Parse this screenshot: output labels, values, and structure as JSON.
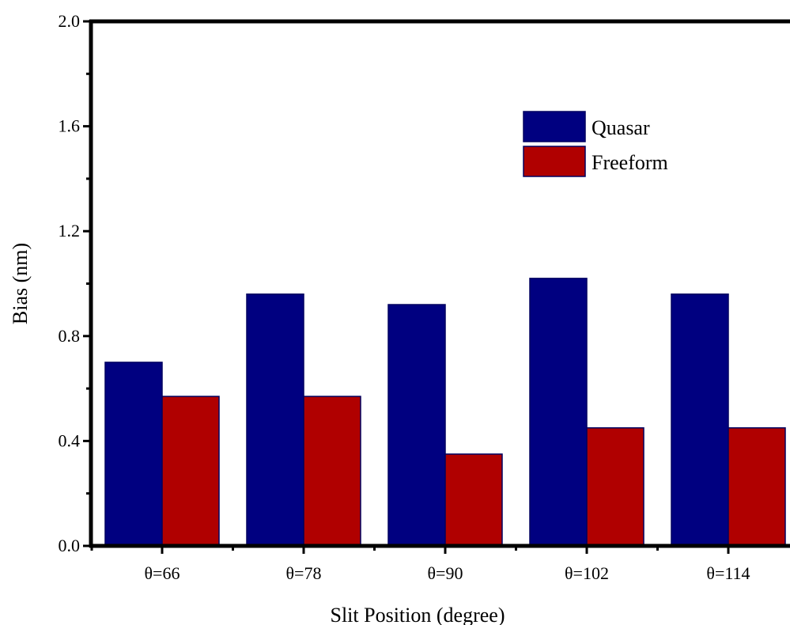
{
  "chart_data": {
    "type": "bar",
    "title": "",
    "xlabel": "Slit Position (degree)",
    "ylabel": "Bias (nm)",
    "categories": [
      "θ=66",
      "θ=78",
      "θ=90",
      "θ=102",
      "θ=114"
    ],
    "series": [
      {
        "name": "Quasar",
        "values": [
          0.7,
          0.96,
          0.92,
          1.02,
          0.96
        ],
        "color": "#000080"
      },
      {
        "name": "Freeform",
        "values": [
          0.57,
          0.57,
          0.35,
          0.45,
          0.45
        ],
        "color": "#B00000"
      }
    ],
    "ylim": [
      0.0,
      2.0
    ],
    "yticks": [
      "0.0",
      "0.4",
      "0.8",
      "1.2",
      "1.6",
      "2.0"
    ],
    "grid": false,
    "legend_position": "top-right"
  }
}
